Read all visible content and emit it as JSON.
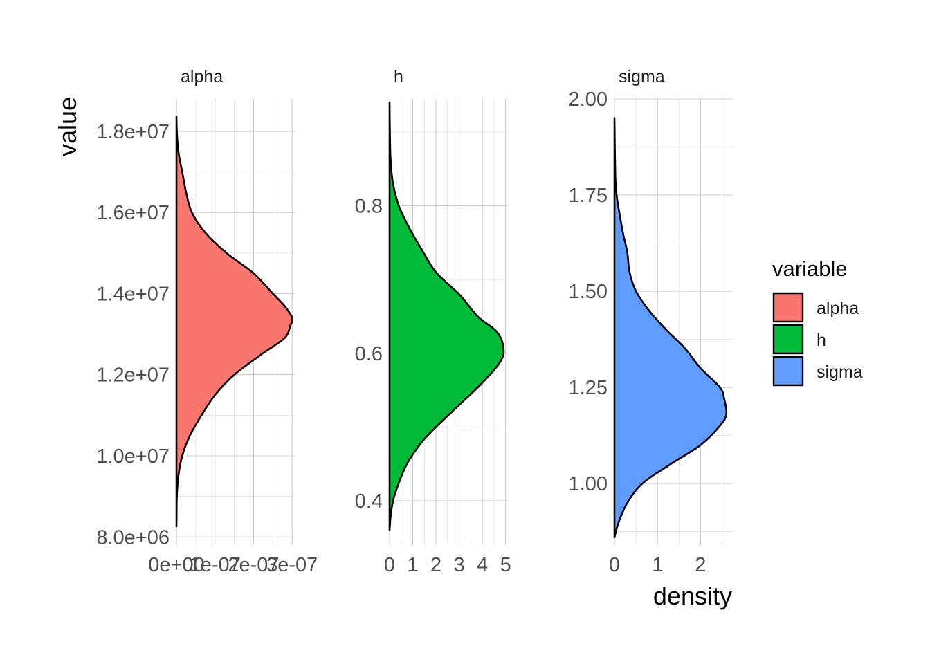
{
  "chart_data": {
    "type": "area",
    "orientation": "horizontal-density",
    "xlabel": "density",
    "ylabel": "value",
    "grid": true,
    "legend": {
      "title": "variable",
      "position": "right",
      "entries": [
        {
          "name": "alpha",
          "color": "#F8766D"
        },
        {
          "name": "h",
          "color": "#00BA38"
        },
        {
          "name": "sigma",
          "color": "#619CFF"
        }
      ]
    },
    "panels": [
      {
        "name": "alpha",
        "color": "#F8766D",
        "xlim": [
          0,
          3.05e-07
        ],
        "ylim": [
          7800000.0,
          18800000.0
        ],
        "x_ticks": [
          0,
          1e-07,
          2e-07,
          3e-07
        ],
        "x_tick_labels": [
          "0e+00",
          "1e-07",
          "2e-07",
          "3e-07"
        ],
        "y_ticks": [
          8000000.0,
          10000000.0,
          12000000.0,
          14000000.0,
          16000000.0,
          18000000.0
        ],
        "y_tick_labels": [
          "8.0e+06",
          "1.0e+07",
          "1.2e+07",
          "1.4e+07",
          "1.6e+07",
          "1.8e+07"
        ],
        "density": [
          [
            8260000.0,
            0
          ],
          [
            8500000.0,
            3e-10
          ],
          [
            9000000.0,
            1e-09
          ],
          [
            9500000.0,
            5e-09
          ],
          [
            10000000.0,
            1.5e-08
          ],
          [
            10500000.0,
            3.5e-08
          ],
          [
            11000000.0,
            6.5e-08
          ],
          [
            11500000.0,
            1e-07
          ],
          [
            12000000.0,
            1.5e-07
          ],
          [
            12500000.0,
            2.2e-07
          ],
          [
            12900000.0,
            2.8e-07
          ],
          [
            13200000.0,
            2.95e-07
          ],
          [
            13400000.0,
            3e-07
          ],
          [
            13700000.0,
            2.8e-07
          ],
          [
            14000000.0,
            2.5e-07
          ],
          [
            14500000.0,
            2e-07
          ],
          [
            15000000.0,
            1.3e-07
          ],
          [
            15500000.0,
            7.5e-08
          ],
          [
            16000000.0,
            4e-08
          ],
          [
            16500000.0,
            2.5e-08
          ],
          [
            17000000.0,
            1.5e-08
          ],
          [
            17500000.0,
            5e-09
          ],
          [
            18000000.0,
            1e-09
          ],
          [
            18370000.0,
            0
          ]
        ]
      },
      {
        "name": "h",
        "color": "#00BA38",
        "xlim": [
          0,
          5.1
        ],
        "ylim": [
          0.34,
          0.945
        ],
        "x_ticks": [
          0,
          1,
          2,
          3,
          4,
          5
        ],
        "x_tick_labels": [
          "0",
          "1",
          "2",
          "3",
          "4",
          "5"
        ],
        "y_ticks": [
          0.4,
          0.6,
          0.8
        ],
        "y_tick_labels": [
          "0.4",
          "0.6",
          "0.8"
        ],
        "density": [
          [
            0.36,
            0
          ],
          [
            0.38,
            0.05
          ],
          [
            0.4,
            0.15
          ],
          [
            0.42,
            0.35
          ],
          [
            0.45,
            0.75
          ],
          [
            0.48,
            1.4
          ],
          [
            0.5,
            2.0
          ],
          [
            0.53,
            3.0
          ],
          [
            0.56,
            4.0
          ],
          [
            0.59,
            4.8
          ],
          [
            0.61,
            4.9
          ],
          [
            0.63,
            4.6
          ],
          [
            0.65,
            3.8
          ],
          [
            0.68,
            3.0
          ],
          [
            0.71,
            2.0
          ],
          [
            0.74,
            1.4
          ],
          [
            0.77,
            0.85
          ],
          [
            0.8,
            0.4
          ],
          [
            0.83,
            0.15
          ],
          [
            0.86,
            0.05
          ],
          [
            0.89,
            0.02
          ],
          [
            0.94,
            0
          ]
        ]
      },
      {
        "name": "sigma",
        "color": "#619CFF",
        "xlim": [
          0,
          2.75
        ],
        "ylim": [
          0.84,
          2.0
        ],
        "x_ticks": [
          0,
          1,
          2
        ],
        "x_tick_labels": [
          "0",
          "1",
          "2"
        ],
        "y_ticks": [
          1.0,
          1.25,
          1.5,
          1.75,
          2.0
        ],
        "y_tick_labels": [
          "1.00",
          "1.25",
          "1.50",
          "1.75",
          "2.00"
        ],
        "density": [
          [
            0.86,
            0
          ],
          [
            0.9,
            0.1
          ],
          [
            0.95,
            0.3
          ],
          [
            1.0,
            0.65
          ],
          [
            1.05,
            1.3
          ],
          [
            1.1,
            2.0
          ],
          [
            1.15,
            2.45
          ],
          [
            1.18,
            2.6
          ],
          [
            1.22,
            2.55
          ],
          [
            1.25,
            2.45
          ],
          [
            1.3,
            2.0
          ],
          [
            1.35,
            1.65
          ],
          [
            1.4,
            1.2
          ],
          [
            1.45,
            0.8
          ],
          [
            1.5,
            0.5
          ],
          [
            1.55,
            0.35
          ],
          [
            1.6,
            0.3
          ],
          [
            1.65,
            0.2
          ],
          [
            1.7,
            0.12
          ],
          [
            1.75,
            0.05
          ],
          [
            1.8,
            0.02
          ],
          [
            1.95,
            0
          ]
        ]
      }
    ]
  }
}
